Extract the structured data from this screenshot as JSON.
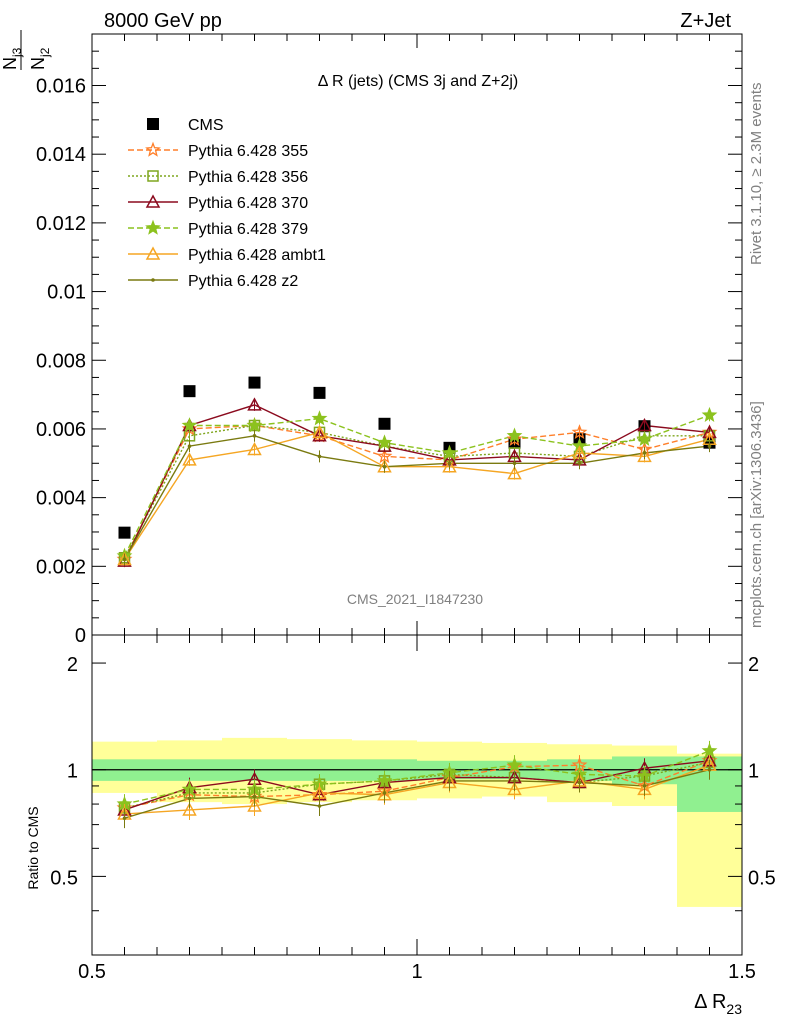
{
  "header": {
    "left": "8000 GeV pp",
    "right": "Z+Jet"
  },
  "side_labels": {
    "rivet": "Rivet 3.1.10, ≥ 2.3M events",
    "mcplots": "mcplots.cern.ch [arXiv:1306.3436]"
  },
  "watermark": "CMS_2021_I1847230",
  "colors": {
    "cms": "#000000",
    "p355": "#ff7f2a",
    "p356": "#7fa61e",
    "p370": "#8b0a1e",
    "p379": "#8cc21e",
    "ambt1": "#f5a623",
    "z2": "#7a7a10",
    "band_inner": "#90f090",
    "band_outer": "#ffff99"
  },
  "chart_data": [
    {
      "type": "scatter",
      "title": "Δ R (jets) (CMS 3j and Z+2j)",
      "ylabel_num": "N",
      "ylabel_num_sub": "j3",
      "ylabel_den": "N",
      "ylabel_den_sub": "j2",
      "ylim": [
        0,
        0.0175
      ],
      "yticks": [
        0,
        0.002,
        0.004,
        0.006,
        0.008,
        0.01,
        0.012,
        0.014,
        0.016
      ],
      "ytick_labels": [
        "0",
        "0.002",
        "0.004",
        "0.006",
        "0.008",
        "0.01",
        "0.012",
        "0.014",
        "0.016"
      ],
      "xlim": [
        0.5,
        1.5
      ],
      "x": [
        0.55,
        0.65,
        0.75,
        0.85,
        0.95,
        1.05,
        1.15,
        1.25,
        1.35,
        1.45
      ],
      "legend_position": "top-left",
      "series": [
        {
          "name": "CMS",
          "key": "cms",
          "marker": "square-filled",
          "dash": "none",
          "values": [
            0.00298,
            0.0071,
            0.00735,
            0.00705,
            0.00615,
            0.00545,
            0.0056,
            0.0057,
            0.00608,
            0.0056
          ]
        },
        {
          "name": "Pythia 6.428 355",
          "key": "p355",
          "marker": "star-open",
          "dash": "6,3",
          "values": [
            0.0022,
            0.006,
            0.0061,
            0.0058,
            0.0052,
            0.0051,
            0.0057,
            0.0059,
            0.0054,
            0.0059
          ]
        },
        {
          "name": "Pythia 6.428 356",
          "key": "p356",
          "marker": "square-open",
          "dash": "2,2",
          "values": [
            0.00225,
            0.0058,
            0.0061,
            0.0059,
            0.0055,
            0.0052,
            0.0053,
            0.0052,
            0.0058,
            0.0058
          ]
        },
        {
          "name": "Pythia 6.428 370",
          "key": "p370",
          "marker": "triangle-open",
          "dash": "none",
          "values": [
            0.00215,
            0.0061,
            0.0067,
            0.0058,
            0.0055,
            0.0051,
            0.0052,
            0.0051,
            0.0061,
            0.0059
          ]
        },
        {
          "name": "Pythia 6.428 379",
          "key": "p379",
          "marker": "star-filled",
          "dash": "6,3",
          "values": [
            0.0023,
            0.0061,
            0.0061,
            0.0063,
            0.0056,
            0.0053,
            0.0058,
            0.0055,
            0.0057,
            0.0064
          ]
        },
        {
          "name": "Pythia 6.428 ambt1",
          "key": "ambt1",
          "marker": "triangle-open",
          "dash": "none",
          "values": [
            0.0022,
            0.0051,
            0.0054,
            0.0059,
            0.0049,
            0.0049,
            0.0047,
            0.0053,
            0.0052,
            0.0057
          ]
        },
        {
          "name": "Pythia 6.428 z2",
          "key": "z2",
          "marker": "dot",
          "dash": "none",
          "values": [
            0.0022,
            0.0055,
            0.0058,
            0.0052,
            0.0049,
            0.005,
            0.005,
            0.005,
            0.0053,
            0.0055
          ]
        }
      ]
    },
    {
      "type": "scatter",
      "ylabel": "Ratio to CMS",
      "xlabel": "Δ R",
      "xlabel_sub": "23",
      "ylim": [
        0.3,
        2.4
      ],
      "yticks": [
        0.5,
        1,
        2
      ],
      "ytick_labels": [
        "0.5",
        "1",
        "2"
      ],
      "xlim": [
        0.5,
        1.5
      ],
      "xticks": [
        0.5,
        1,
        1.5
      ],
      "xtick_labels": [
        "0.5",
        "1",
        "1.5"
      ],
      "x": [
        0.55,
        0.65,
        0.75,
        0.85,
        0.95,
        1.05,
        1.15,
        1.25,
        1.35,
        1.45
      ],
      "bins": [
        [
          0.5,
          0.6
        ],
        [
          0.6,
          0.7
        ],
        [
          0.7,
          0.8
        ],
        [
          0.8,
          0.9
        ],
        [
          0.9,
          1.0
        ],
        [
          1.0,
          1.1
        ],
        [
          1.1,
          1.2
        ],
        [
          1.2,
          1.3
        ],
        [
          1.3,
          1.4
        ],
        [
          1.4,
          1.5
        ]
      ],
      "band_inner": [
        [
          0.93,
          1.07
        ],
        [
          0.93,
          1.07
        ],
        [
          0.93,
          1.07
        ],
        [
          0.93,
          1.07
        ],
        [
          0.93,
          1.07
        ],
        [
          0.94,
          1.06
        ],
        [
          0.94,
          1.06
        ],
        [
          0.93,
          1.07
        ],
        [
          0.91,
          1.09
        ],
        [
          0.76,
          1.09
        ]
      ],
      "band_outer": [
        [
          0.86,
          1.2
        ],
        [
          0.81,
          1.21
        ],
        [
          0.8,
          1.23
        ],
        [
          0.81,
          1.22
        ],
        [
          0.82,
          1.21
        ],
        [
          0.83,
          1.2
        ],
        [
          0.84,
          1.19
        ],
        [
          0.81,
          1.18
        ],
        [
          0.79,
          1.17
        ],
        [
          0.41,
          1.11
        ]
      ],
      "reference": 1,
      "series": [
        {
          "key": "p355",
          "values": [
            0.78,
            0.85,
            0.84,
            0.85,
            0.87,
            0.95,
            1.02,
            1.03,
            0.9,
            1.06
          ]
        },
        {
          "key": "p356",
          "values": [
            0.78,
            0.86,
            0.86,
            0.91,
            0.93,
            0.97,
            0.95,
            0.92,
            0.96,
            1.05
          ]
        },
        {
          "key": "p370",
          "values": [
            0.77,
            0.89,
            0.94,
            0.85,
            0.92,
            0.95,
            0.95,
            0.92,
            1.01,
            1.06
          ]
        },
        {
          "key": "p379",
          "values": [
            0.8,
            0.88,
            0.88,
            0.91,
            0.93,
            0.98,
            1.03,
            0.97,
            0.96,
            1.13
          ]
        },
        {
          "key": "ambt1",
          "values": [
            0.75,
            0.77,
            0.79,
            0.86,
            0.85,
            0.92,
            0.88,
            0.93,
            0.88,
            1.03
          ]
        },
        {
          "key": "z2",
          "values": [
            0.73,
            0.83,
            0.84,
            0.79,
            0.86,
            0.93,
            0.93,
            0.92,
            0.9,
            1.0
          ]
        }
      ]
    }
  ]
}
